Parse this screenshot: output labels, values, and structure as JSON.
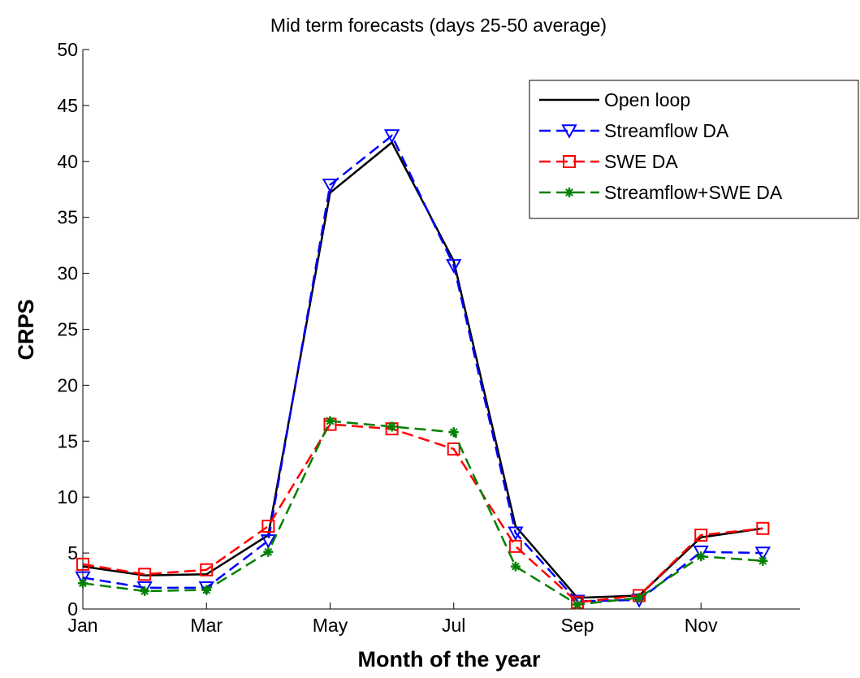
{
  "chart_data": {
    "type": "line",
    "title": "Mid term forecasts (days 25-50 average)",
    "xlabel": "Month of the year",
    "ylabel": "CRPS",
    "x": [
      1,
      2,
      3,
      4,
      5,
      6,
      7,
      8,
      9,
      10,
      11,
      12
    ],
    "xlim": [
      1,
      12.6
    ],
    "ylim": [
      0,
      50
    ],
    "x_ticks": [
      {
        "value": 1,
        "label": "Jan"
      },
      {
        "value": 3,
        "label": "Mar"
      },
      {
        "value": 5,
        "label": "May"
      },
      {
        "value": 7,
        "label": "Jul"
      },
      {
        "value": 9,
        "label": "Sep"
      },
      {
        "value": 11,
        "label": "Nov"
      }
    ],
    "y_ticks": [
      0,
      5,
      10,
      15,
      20,
      25,
      30,
      35,
      40,
      45,
      50
    ],
    "grid": false,
    "legend_position": "top-right",
    "series": [
      {
        "name": "Open loop",
        "color": "#000000",
        "line_style": "solid",
        "marker": "none",
        "values": [
          3.8,
          3.0,
          3.1,
          6.6,
          37.2,
          41.7,
          31.1,
          7.4,
          1.0,
          1.2,
          6.4,
          7.2
        ]
      },
      {
        "name": "Streamflow DA",
        "color": "#0000ff",
        "line_style": "dashed",
        "marker": "triangle-down",
        "values": [
          2.8,
          1.9,
          1.9,
          6.1,
          37.9,
          42.3,
          30.7,
          6.8,
          0.7,
          0.8,
          5.1,
          5.0
        ]
      },
      {
        "name": "SWE DA",
        "color": "#ff0000",
        "line_style": "dashed",
        "marker": "square",
        "values": [
          4.0,
          3.1,
          3.5,
          7.4,
          16.5,
          16.1,
          14.3,
          5.6,
          0.6,
          1.2,
          6.6,
          7.2
        ]
      },
      {
        "name": "Streamflow+SWE DA",
        "color": "#008000",
        "line_style": "dashed",
        "marker": "star",
        "values": [
          2.3,
          1.6,
          1.7,
          5.1,
          16.8,
          16.3,
          15.8,
          3.8,
          0.4,
          1.0,
          4.7,
          4.3
        ]
      }
    ]
  }
}
